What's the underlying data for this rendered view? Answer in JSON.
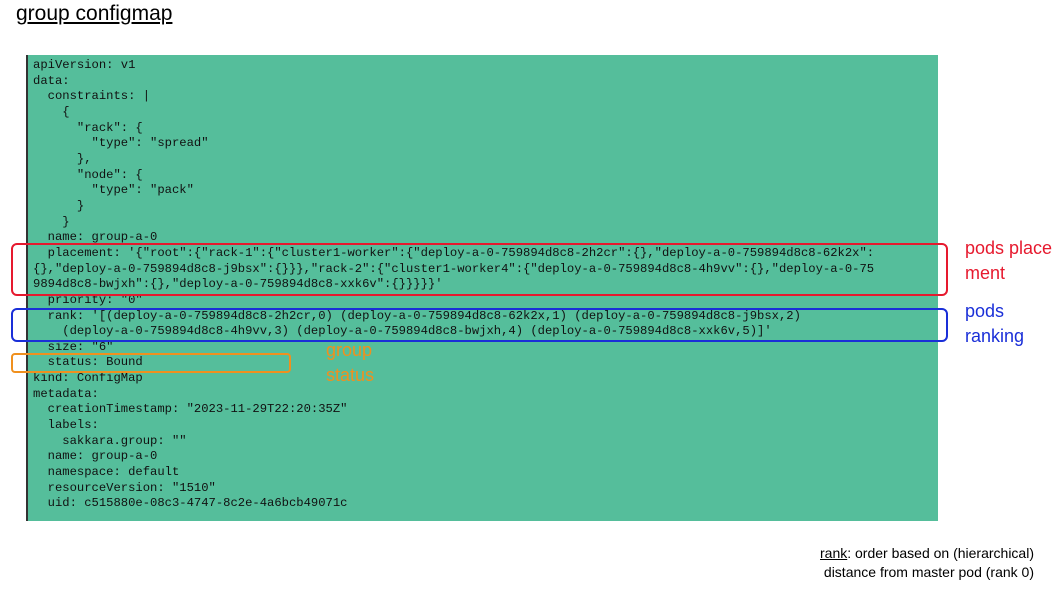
{
  "title": "group configmap",
  "yaml_lines": [
    "apiVersion: v1",
    "data:",
    "  constraints: |",
    "    {",
    "      \"rack\": {",
    "        \"type\": \"spread\"",
    "      },",
    "      \"node\": {",
    "        \"type\": \"pack\"",
    "      }",
    "    }",
    "  name: group-a-0",
    "  placement: '{\"root\":{\"rack-1\":{\"cluster1-worker\":{\"deploy-a-0-759894d8c8-2h2cr\":{},\"deploy-a-0-759894d8c8-62k2x\":",
    "{},\"deploy-a-0-759894d8c8-j9bsx\":{}}},\"rack-2\":{\"cluster1-worker4\":{\"deploy-a-0-759894d8c8-4h9vv\":{},\"deploy-a-0-75",
    "9894d8c8-bwjxh\":{},\"deploy-a-0-759894d8c8-xxk6v\":{}}}}}'",
    "  priority: \"0\"",
    "  rank: '[(deploy-a-0-759894d8c8-2h2cr,0) (deploy-a-0-759894d8c8-62k2x,1) (deploy-a-0-759894d8c8-j9bsx,2)",
    "    (deploy-a-0-759894d8c8-4h9vv,3) (deploy-a-0-759894d8c8-bwjxh,4) (deploy-a-0-759894d8c8-xxk6v,5)]'",
    "  size: \"6\"",
    "  status: Bound",
    "kind: ConfigMap",
    "metadata:",
    "  creationTimestamp: \"2023-11-29T22:20:35Z\"",
    "  labels:",
    "    sakkara.group: \"\"",
    "  name: group-a-0",
    "  namespace: default",
    "  resourceVersion: \"1510\"",
    "  uid: c515880e-08c3-4747-8c2e-4a6bcb49071c"
  ],
  "annotations": {
    "placement": "pods placement",
    "ranking_line1": "pods",
    "ranking_line2": "ranking",
    "status_line1": "group",
    "status_line2": "status"
  },
  "footnote": {
    "term": "rank",
    "line1_rest": ": order based on (hierarchical)",
    "line2": "distance from master pod (rank 0)"
  },
  "colors": {
    "panel_bg": "#55be9b",
    "placement_highlight": "#e6192e",
    "ranking_highlight": "#1a2fd8",
    "status_highlight": "#f0901e"
  }
}
